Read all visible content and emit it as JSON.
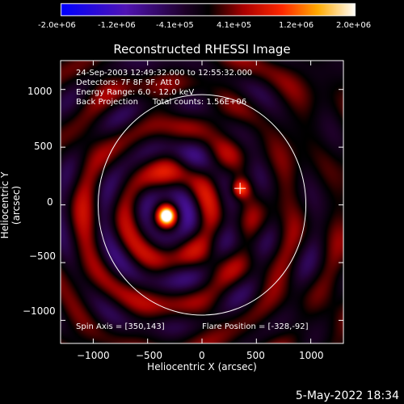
{
  "colorbar": {
    "tick_labels": [
      "-2.0e+06",
      "-1.2e+06",
      "-4.1e+05",
      "4.1e+05",
      "1.2e+06",
      "2.0e+06"
    ],
    "min": -2000000,
    "max": 2000000
  },
  "annotations": {
    "line1": "24-Sep-2003 12:49:32.000 to 12:55:32.000",
    "line2": "Detectors: 7F 8F 9F, Att 0",
    "line3": "Energy Range: 6.0 - 12.0 keV",
    "line4a": "Back Projection",
    "line4b": "Total counts: 1.56E+06",
    "spin_axis": "Spin Axis = [350,143]",
    "flare_position": "Flare Position = [-328,-92]"
  },
  "footer_date": "5-May-2022 18:34",
  "chart_data": {
    "type": "heatmap",
    "title": "Reconstructed RHESSI Image",
    "xlabel": "Heliocentric X (arcsec)",
    "ylabel": "Heliocentric Y (arcsec)",
    "xlim": [
      -1300,
      1300
    ],
    "ylim": [
      -1200,
      1250
    ],
    "x_ticks": [
      -1000,
      -500,
      0,
      500,
      1000
    ],
    "y_ticks": [
      -1000,
      -500,
      0,
      500,
      1000
    ],
    "x_tick_labels": [
      "−1000",
      "−500",
      "0",
      "500",
      "1000"
    ],
    "y_tick_labels": [
      "−1000",
      "−500",
      "0",
      "500",
      "1000"
    ],
    "solar_limb_radius": 955,
    "sources": [
      {
        "x": -328,
        "y": -92,
        "intensity": 2000000,
        "note": "flare"
      },
      {
        "x": 350,
        "y": 143,
        "intensity": 900000,
        "note": "spin axis"
      }
    ],
    "spin_axis_marker": [
      350,
      143
    ],
    "colormap": "red-temperature"
  }
}
